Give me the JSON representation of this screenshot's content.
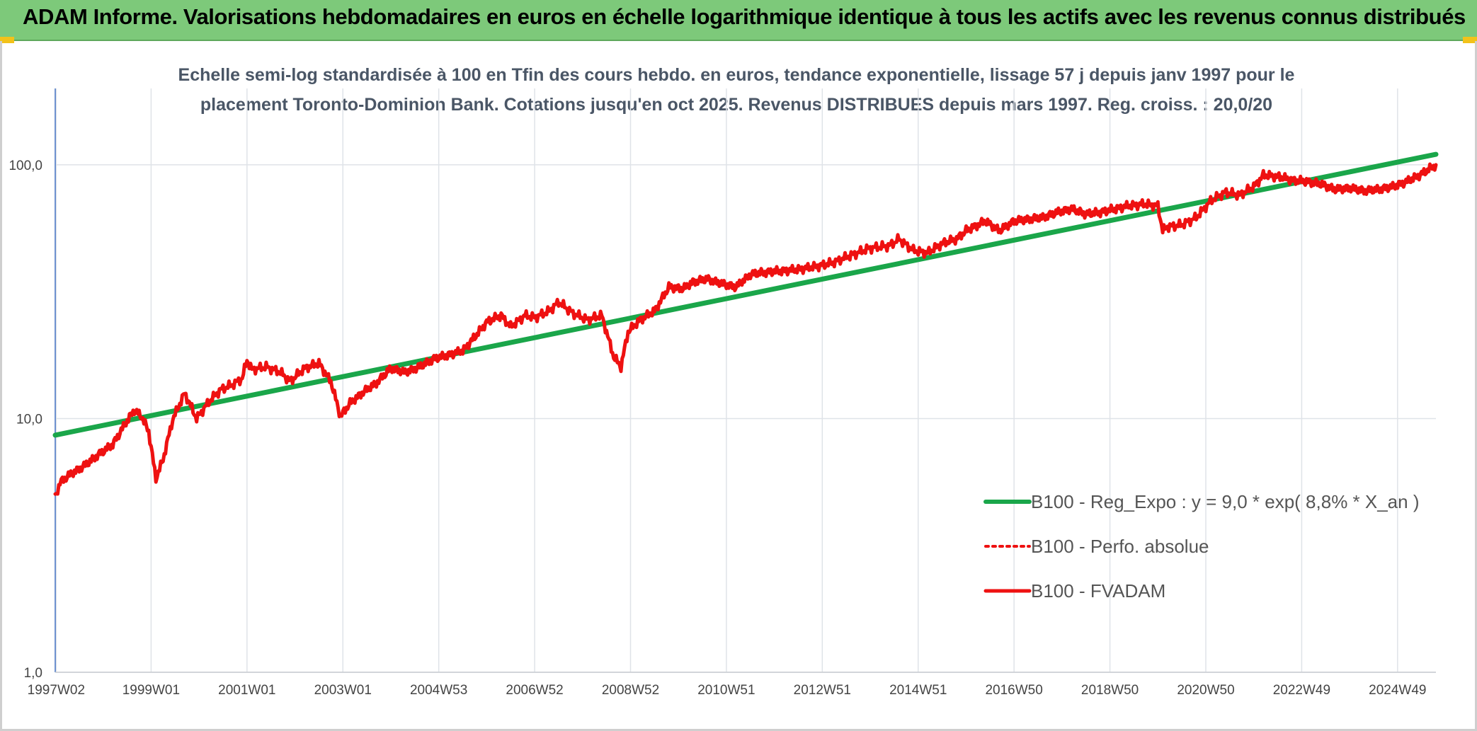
{
  "header": {
    "title": "ADAM Informe. Valorisations hebdomadaires en euros en échelle logarithmique identique à tous les actifs avec les revenus connus distribués"
  },
  "colors": {
    "banner": "#7dc97a",
    "regression": "#1aa64a",
    "fvadam": "#ee1111",
    "grid": "#dfe3e8"
  },
  "chart_data": {
    "type": "line",
    "title_line1": "Echelle semi-log standardisée à 100 en Tfin des cours hebdo. en euros, tendance exponentielle, lissage 57 j depuis janv 1997 pour le",
    "title_line2": "placement Toronto-Dominion Bank. Cotations jusqu'en oct 2025. Revenus DISTRIBUES depuis mars 1997. Reg. croiss. : 20,0/20",
    "y_scale": "log",
    "ylim": [
      1,
      200
    ],
    "y_ticks": [
      {
        "value": 1,
        "label": "1,0"
      },
      {
        "value": 10,
        "label": "10,0"
      },
      {
        "value": 100,
        "label": "100,0"
      }
    ],
    "xlim": [
      1997.0,
      2025.8
    ],
    "x_ticks": [
      {
        "value": 1997.02,
        "label": "1997W02"
      },
      {
        "value": 1999.0,
        "label": "1999W01"
      },
      {
        "value": 2001.0,
        "label": "2001W01"
      },
      {
        "value": 2003.0,
        "label": "2003W01"
      },
      {
        "value": 2005.0,
        "label": "2004W53"
      },
      {
        "value": 2007.0,
        "label": "2006W52"
      },
      {
        "value": 2009.0,
        "label": "2008W52"
      },
      {
        "value": 2011.0,
        "label": "2010W51"
      },
      {
        "value": 2013.0,
        "label": "2012W51"
      },
      {
        "value": 2015.0,
        "label": "2014W51"
      },
      {
        "value": 2017.0,
        "label": "2016W50"
      },
      {
        "value": 2019.0,
        "label": "2018W50"
      },
      {
        "value": 2021.0,
        "label": "2020W50"
      },
      {
        "value": 2023.0,
        "label": "2022W49"
      },
      {
        "value": 2025.0,
        "label": "2024W49"
      }
    ],
    "grid": true,
    "legend_position": "bottom-right",
    "legend": [
      {
        "label": "B100 - Reg_Expo : y = 9,0 * exp( 8,8% *  X_an )",
        "style": "solid-green"
      },
      {
        "label": "B100 - Perfo. absolue",
        "style": "dotted-red"
      },
      {
        "label": "B100 - FVADAM",
        "style": "solid-red"
      }
    ],
    "series": [
      {
        "label_ref": "B100 - Reg_Expo",
        "kind": "regression",
        "x": [
          1997.0,
          2025.8
        ],
        "y": [
          8.6,
          110.0
        ]
      },
      {
        "label_ref": "B100 - FVADAM",
        "kind": "fvadam",
        "x": [
          1997.0,
          1997.1,
          1997.3,
          1997.6,
          1997.9,
          1998.2,
          1998.5,
          1998.65,
          1998.8,
          1998.95,
          1999.1,
          1999.25,
          1999.45,
          1999.7,
          1999.95,
          2000.2,
          2000.45,
          2000.7,
          2000.9,
          2001.0,
          2001.1,
          2001.4,
          2001.7,
          2001.9,
          2002.2,
          2002.5,
          2002.75,
          2002.95,
          2003.15,
          2003.4,
          2003.7,
          2004.0,
          2004.3,
          2004.6,
          2004.9,
          2005.2,
          2005.5,
          2005.8,
          2006.0,
          2006.3,
          2006.5,
          2006.8,
          2007.0,
          2007.3,
          2007.5,
          2007.8,
          2008.1,
          2008.4,
          2008.65,
          2008.8,
          2008.95,
          2009.2,
          2009.5,
          2009.8,
          2010.1,
          2010.3,
          2010.6,
          2010.9,
          2011.2,
          2011.5,
          2011.7,
          2012.0,
          2012.4,
          2012.8,
          2013.2,
          2013.6,
          2014.0,
          2014.4,
          2014.6,
          2014.9,
          2015.2,
          2015.5,
          2015.8,
          2016.0,
          2016.4,
          2016.7,
          2017.0,
          2017.3,
          2017.6,
          2017.9,
          2018.2,
          2018.5,
          2018.8,
          2019.1,
          2019.4,
          2019.7,
          2020.0,
          2020.1,
          2020.2,
          2020.5,
          2020.8,
          2021.1,
          2021.4,
          2021.7,
          2022.0,
          2022.2,
          2022.5,
          2022.8,
          2023.1,
          2023.4,
          2023.7,
          2024.0,
          2024.3,
          2024.6,
          2024.9,
          2025.2,
          2025.5,
          2025.8
        ],
        "y": [
          4.9,
          5.6,
          6.0,
          6.5,
          7.2,
          7.9,
          9.8,
          10.8,
          10.2,
          8.9,
          5.8,
          6.9,
          9.9,
          12.6,
          10.0,
          11.6,
          13.0,
          13.6,
          14.4,
          17.0,
          15.6,
          16.0,
          15.2,
          14.0,
          15.8,
          16.5,
          14.0,
          10.2,
          11.5,
          12.6,
          13.8,
          15.8,
          15.2,
          16.0,
          17.2,
          17.8,
          18.5,
          21.5,
          24.0,
          25.5,
          23.0,
          25.5,
          25.0,
          26.5,
          28.8,
          26.0,
          24.5,
          25.5,
          17.5,
          16.0,
          22.0,
          24.5,
          26.5,
          33.0,
          32.5,
          34.5,
          35.5,
          34.0,
          33.0,
          37.0,
          37.5,
          38.0,
          38.5,
          39.5,
          41.0,
          44.0,
          47.0,
          48.0,
          51.0,
          46.0,
          45.0,
          49.0,
          51.0,
          55.0,
          60.0,
          55.0,
          60.0,
          61.0,
          62.0,
          65.0,
          67.0,
          64.0,
          65.0,
          67.0,
          69.0,
          70.0,
          69.0,
          55.0,
          57.0,
          58.0,
          62.0,
          72.0,
          78.0,
          76.0,
          82.0,
          91.0,
          90.0,
          87.0,
          86.0,
          84.0,
          80.0,
          81.0,
          79.0,
          80.0,
          82.0,
          86.0,
          92.0,
          100.0
        ]
      }
    ]
  }
}
